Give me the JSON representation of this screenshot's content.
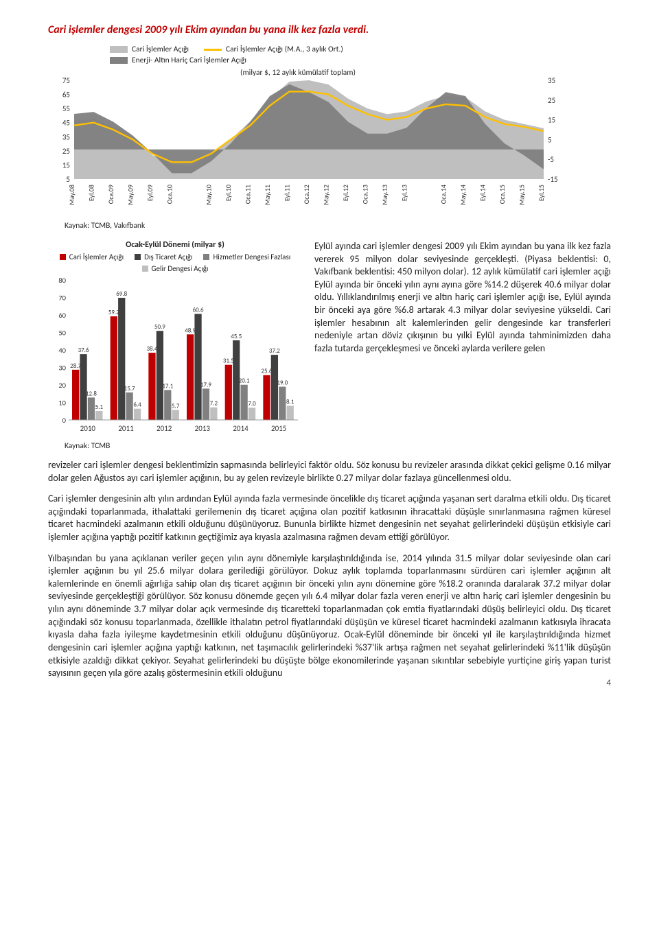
{
  "title": "Cari işlemler dengesi 2009 yılı Ekim ayından bu yana ilk kez fazla verdi.",
  "chart1": {
    "legend": {
      "area1": "Cari İşlemler Açığı",
      "area2": "Enerji- Altın Hariç Cari İşlemler Açığı",
      "line1": "Cari İşlemler Açığı (M.A., 3 aylık Ort.)"
    },
    "subtitle": "(milyar $, 12 aylık kümülatif toplam)",
    "x_labels": [
      "May.08",
      "Eyl.08",
      "Oca.09",
      "May.09",
      "Eyl.09",
      "Oca.10",
      "May.10",
      "Eyl.10",
      "Oca.11",
      "May.11",
      "Eyl.11",
      "Oca.12",
      "May.12",
      "Eyl.12",
      "Oca.13",
      "May.13",
      "Eyl.13",
      "Oca.14",
      "May.14",
      "Eyl.14",
      "Oca.15",
      "May.15",
      "Eyl.15"
    ],
    "y_left": {
      "min": 5,
      "max": 75,
      "ticks": [
        5,
        15,
        25,
        35,
        45,
        55,
        65,
        75
      ]
    },
    "y_right": {
      "min": -15,
      "max": 35,
      "ticks": [
        -15,
        -5,
        5,
        15,
        25,
        35
      ]
    },
    "cari_area_color": "#bfbfbf",
    "enerji_area_color": "#808080",
    "line_color": "#ffc000",
    "cari": [
      46,
      48,
      42,
      34,
      22,
      15,
      14,
      22,
      33,
      46,
      62,
      74,
      75,
      72,
      62,
      55,
      51,
      53,
      60,
      64,
      63,
      53,
      47,
      44,
      41
    ],
    "enerji": [
      18,
      19,
      14,
      7,
      -2,
      -12,
      -12,
      -6,
      3,
      14,
      27,
      33,
      29,
      24,
      14,
      8,
      8,
      11,
      21,
      29,
      27,
      13,
      3,
      -3,
      -10
    ],
    "ma3": [
      3.8,
      4.0,
      3.5,
      2.8,
      1.8,
      1.2,
      1.2,
      1.8,
      2.8,
      3.8,
      5.2,
      6.2,
      6.2,
      6.0,
      5.2,
      4.6,
      4.2,
      4.4,
      5.0,
      5.3,
      5.2,
      4.4,
      3.9,
      3.7,
      3.4
    ],
    "source": "Kaynak: TCMB, Vakıfbank"
  },
  "chart2": {
    "title": "Ocak-Eylül Dönemi (milyar $)",
    "legend": {
      "cari": "Cari İşlemler Açığı",
      "dis": "Dış Ticaret Açığı",
      "hizmet": "Hizmetler Dengesi Fazlası",
      "gelir": "Gelir Dengesi Açığı"
    },
    "colors": {
      "cari": "#c00000",
      "dis": "#404040",
      "hizmet": "#808080",
      "gelir": "#bfbfbf"
    },
    "y": {
      "min": 0,
      "max": 80,
      "ticks": [
        0,
        10,
        20,
        30,
        40,
        50,
        60,
        70,
        80
      ]
    },
    "years": [
      "2010",
      "2011",
      "2012",
      "2013",
      "2014",
      "2015"
    ],
    "data": {
      "cari": [
        28.7,
        59.2,
        38.4,
        48.9,
        31.5,
        25.6
      ],
      "dis": [
        37.6,
        69.8,
        50.9,
        60.6,
        45.5,
        37.2
      ],
      "hizmet": [
        12.8,
        15.7,
        17.1,
        17.9,
        20.1,
        19.0
      ],
      "gelir": [
        5.1,
        6.4,
        5.7,
        7.2,
        7.0,
        8.1
      ]
    },
    "source": "Kaynak: TCMB"
  },
  "side_text": "Eylül ayında cari işlemler dengesi 2009 yılı Ekim ayından bu yana ilk kez fazla vererek 95 milyon dolar seviyesinde gerçekleşti. (Piyasa beklentisi: 0, Vakıfbank beklentisi: 450 milyon dolar). 12 aylık kümülatif cari işlemler açığı Eylül ayında bir önceki yılın aynı ayına göre %14.2 düşerek 40.6 milyar dolar oldu. Yıllıklandırılmış enerji ve altın hariç cari işlemler açığı ise, Eylül ayında bir önceki aya göre %6.8 artarak 4.3 milyar dolar seviyesine yükseldi. Cari işlemler hesabının alt kalemlerinden gelir dengesinde kar transferleri nedeniyle artan döviz çıkışının bu yılki Eylül ayında tahminimizden daha fazla tutarda gerçekleşmesi ve önceki aylarda verilere gelen",
  "para1": "revizeler cari işlemler dengesi beklentimizin sapmasında belirleyici faktör oldu. Söz konusu bu revizeler arasında dikkat çekici gelişme 0.16 milyar dolar gelen Ağustos ayı cari işlemler açığının, bu ay gelen revizeyle birlikte 0.27 milyar dolar fazlaya güncellenmesi oldu.",
  "para2": "Cari işlemler dengesinin altı yılın ardından Eylül ayında fazla vermesinde öncelikle dış ticaret açığında yaşanan sert daralma etkili oldu. Dış ticaret açığındaki toparlanmada, ithalattaki gerilemenin dış ticaret açığına olan pozitif katkısının ihracattaki düşüşle sınırlanmasına rağmen küresel ticaret hacmindeki azalmanın etkili olduğunu düşünüyoruz. Bununla birlikte hizmet dengesinin net seyahat gelirlerindeki düşüşün etkisiyle cari işlemler açığına yaptığı pozitif katkının geçtiğimiz aya kıyasla azalmasına rağmen devam ettiği görülüyor.",
  "para3": "Yılbaşından bu yana açıklanan veriler geçen yılın aynı dönemiyle karşılaştırıldığında ise, 2014 yılında 31.5 milyar dolar seviyesinde olan cari işlemler açığının bu yıl 25.6 milyar dolara gerilediği görülüyor. Dokuz aylık toplamda toparlanmasını sürdüren cari işlemler açığının alt kalemlerinde en önemli ağırlığa sahip olan dış ticaret açığının bir önceki yılın aynı dönemine göre %18.2 oranında daralarak 37.2 milyar dolar seviyesinde gerçekleştiği görülüyor. Söz konusu dönemde geçen yılı 6.4 milyar dolar fazla veren enerji ve altın hariç cari işlemler dengesinin bu yılın aynı döneminde 3.7 milyar dolar açık vermesinde dış ticaretteki toparlanmadan çok emtia fiyatlarındaki düşüş belirleyici oldu. Dış ticaret açığındaki söz konusu toparlanmada, özellikle ithalatın petrol fiyatlarındaki düşüşün ve küresel ticaret hacmindeki azalmanın katkısıyla ihracata kıyasla daha fazla iyileşme kaydetmesinin etkili olduğunu düşünüyoruz. Ocak-Eylül döneminde bir önceki yıl ile karşılaştırıldığında hizmet dengesinin cari işlemler açığına yaptığı katkının, net taşımacılık gelirlerindeki %37'lik artışa rağmen net seyahat gelirlerindeki %11'lik düşüşün etkisiyle azaldığı dikkat çekiyor. Seyahat gelirlerindeki bu düşüşte bölge ekonomilerinde yaşanan sıkıntılar sebebiyle yurtiçine giriş yapan turist sayısının geçen yıla göre azalış göstermesinin etkili olduğunu",
  "page_number": "4"
}
